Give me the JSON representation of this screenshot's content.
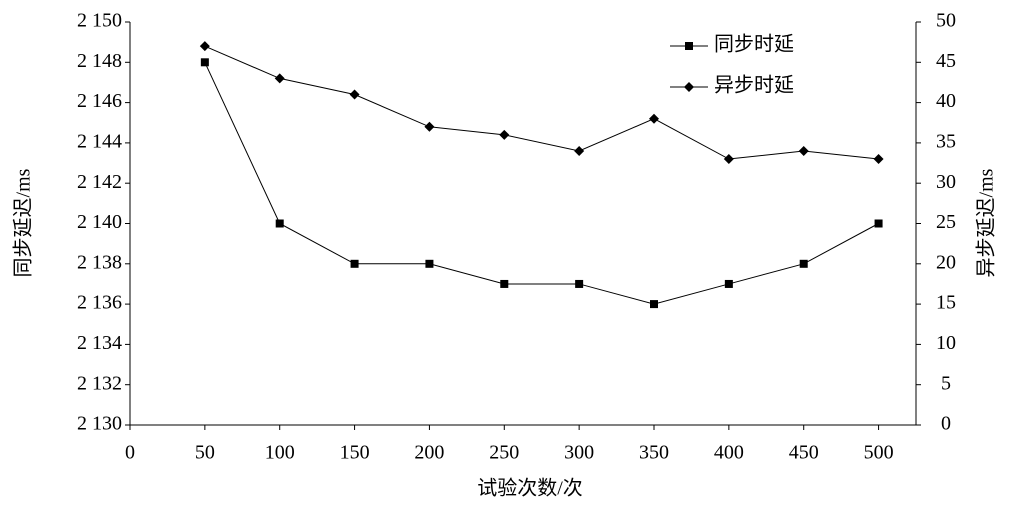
{
  "chart_data": {
    "type": "line",
    "x_label": "试验次数/次",
    "y_label": "同步延迟/ms",
    "y2_label": "异步延迟/ms",
    "x": [
      50,
      100,
      150,
      200,
      250,
      300,
      350,
      400,
      450,
      500
    ],
    "xlim": [
      0,
      525
    ],
    "xticks": [
      0,
      50,
      100,
      150,
      200,
      250,
      300,
      350,
      400,
      450,
      500
    ],
    "ylim": [
      2130,
      2150
    ],
    "yticks": [
      {
        "value": 2130,
        "label": "2 130"
      },
      {
        "value": 2132,
        "label": "2 132"
      },
      {
        "value": 2134,
        "label": "2 134"
      },
      {
        "value": 2136,
        "label": "2 136"
      },
      {
        "value": 2138,
        "label": "2 138"
      },
      {
        "value": 2140,
        "label": "2 140"
      },
      {
        "value": 2142,
        "label": "2 142"
      },
      {
        "value": 2144,
        "label": "2 144"
      },
      {
        "value": 2146,
        "label": "2 146"
      },
      {
        "value": 2148,
        "label": "2 148"
      },
      {
        "value": 2150,
        "label": "2 150"
      }
    ],
    "y2lim": [
      0,
      50
    ],
    "y2ticks": [
      0,
      5,
      10,
      15,
      20,
      25,
      30,
      35,
      40,
      45,
      50
    ],
    "legend": "upper right",
    "series": [
      {
        "name": "同步时延",
        "color": "#000000",
        "marker": "square",
        "values": [
          2148,
          2140,
          2138,
          2138,
          2137,
          2137,
          2136,
          2137,
          2138,
          2140
        ]
      },
      {
        "name": "异步时延",
        "color": "#000000",
        "marker": "diamond",
        "axis": "y2",
        "values": [
          47,
          43,
          41,
          37,
          36,
          34,
          38,
          33,
          34,
          33
        ]
      }
    ]
  }
}
